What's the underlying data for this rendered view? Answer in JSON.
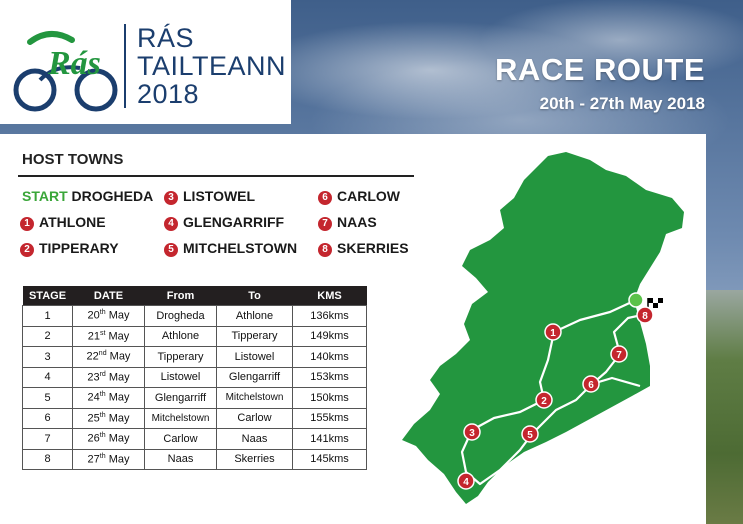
{
  "colors": {
    "brand_green": "#23963f",
    "brand_navy": "#1b3e6e",
    "marker_red": "#c4262e",
    "start_green": "#3aa639"
  },
  "logo": {
    "script": "Rás",
    "line1": "RÁS",
    "line2": "TAILTEANN",
    "line3": "2018"
  },
  "header": {
    "title": "RACE ROUTE",
    "dates": "20th - 27th May 2018"
  },
  "host_towns": {
    "heading": "HOST TOWNS",
    "start_label": "START",
    "start_town": "DROGHEDA",
    "towns": [
      {
        "num": "1",
        "name": "ATHLONE"
      },
      {
        "num": "2",
        "name": "TIPPERARY"
      },
      {
        "num": "3",
        "name": "LISTOWEL"
      },
      {
        "num": "4",
        "name": "GLENGARRIFF"
      },
      {
        "num": "5",
        "name": "MITCHELSTOWN"
      },
      {
        "num": "6",
        "name": "CARLOW"
      },
      {
        "num": "7",
        "name": "NAAS"
      },
      {
        "num": "8",
        "name": "SKERRIES"
      }
    ]
  },
  "stage_table": {
    "headers": [
      "STAGE",
      "DATE",
      "From",
      "To",
      "KMS"
    ],
    "rows": [
      {
        "stage": "1",
        "day": "20",
        "suffix": "th",
        "month": "May",
        "from": "Drogheda",
        "to": "Athlone",
        "kms": "136kms"
      },
      {
        "stage": "2",
        "day": "21",
        "suffix": "st",
        "month": "May",
        "from": "Athlone",
        "to": "Tipperary",
        "kms": "149kms"
      },
      {
        "stage": "3",
        "day": "22",
        "suffix": "nd",
        "month": "May",
        "from": "Tipperary",
        "to": "Listowel",
        "kms": "140kms"
      },
      {
        "stage": "4",
        "day": "23",
        "suffix": "rd",
        "month": "May",
        "from": "Listowel",
        "to": "Glengarriff",
        "kms": "153kms"
      },
      {
        "stage": "5",
        "day": "24",
        "suffix": "th",
        "month": "May",
        "from": "Glengarriff",
        "to": "Mitchelstown",
        "kms": "150kms"
      },
      {
        "stage": "6",
        "day": "25",
        "suffix": "th",
        "month": "May",
        "from": "Mitchelstown",
        "to": "Carlow",
        "kms": "155kms"
      },
      {
        "stage": "7",
        "day": "26",
        "suffix": "th",
        "month": "May",
        "from": "Carlow",
        "to": "Naas",
        "kms": "141kms"
      },
      {
        "stage": "8",
        "day": "27",
        "suffix": "th",
        "month": "May",
        "from": "Naas",
        "to": "Skerries",
        "kms": "145kms"
      }
    ]
  },
  "map": {
    "markers": [
      "1",
      "2",
      "3",
      "4",
      "5",
      "6",
      "7",
      "8"
    ],
    "start_marker": "start-dot",
    "finish_marker": "checkered-flag-icon"
  }
}
